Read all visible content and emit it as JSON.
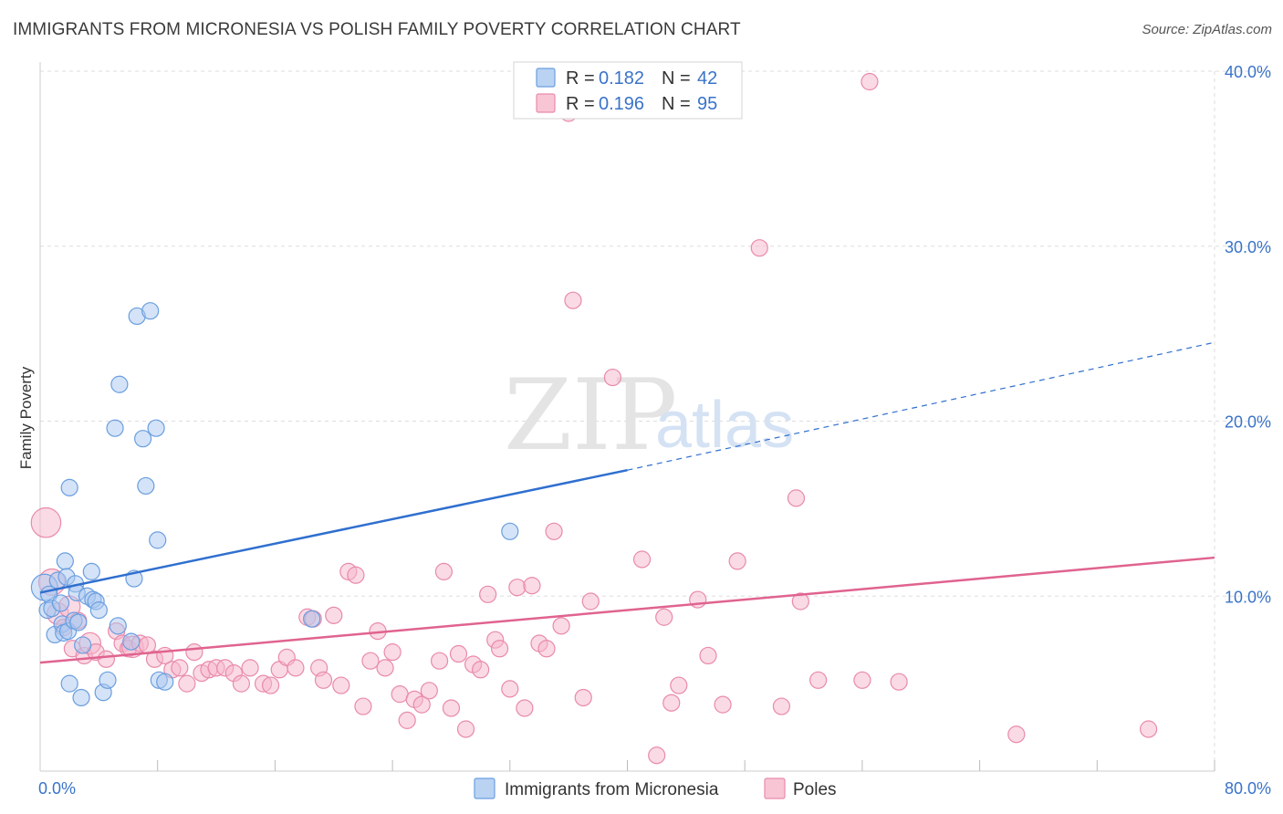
{
  "header": {
    "title": "IMMIGRANTS FROM MICRONESIA VS POLISH FAMILY POVERTY CORRELATION CHART",
    "source": "Source: ZipAtlas.com"
  },
  "watermark": {
    "zip": "ZIP",
    "atlas": "atlas"
  },
  "colors": {
    "blue_fill": "#a9c8f0",
    "blue_stroke": "#6a9ee0",
    "blue_line": "#2f6fcf",
    "pink_fill": "#f6b6cb",
    "pink_stroke": "#e98aaa",
    "pink_line": "#e0638f",
    "tick_text": "#3a73c9",
    "grid": "#dedede"
  },
  "legend": {
    "rows": [
      {
        "r_label": "R = ",
        "r_value": "0.182",
        "n_label": "N = ",
        "n_value": "42"
      },
      {
        "r_label": "R = ",
        "r_value": "0.196",
        "n_label": "N = ",
        "n_value": "95"
      }
    ]
  },
  "bottom_legend": [
    "Immigrants from Micronesia",
    "Poles"
  ],
  "chart_data": {
    "type": "scatter",
    "title": "IMMIGRANTS FROM MICRONESIA VS POLISH FAMILY POVERTY CORRELATION CHART",
    "xlabel": "",
    "ylabel": "Family Poverty",
    "xlim": [
      0,
      80
    ],
    "ylim": [
      0,
      40
    ],
    "x_tick_labels": [
      "0.0%",
      "80.0%"
    ],
    "y_ticks": [
      10,
      20,
      30,
      40
    ],
    "y_tick_labels": [
      "10.0%",
      "20.0%",
      "30.0%",
      "40.0%"
    ],
    "grid": true,
    "legend_position": "top-center",
    "series": [
      {
        "name": "Immigrants from Micronesia",
        "R": 0.182,
        "N": 42,
        "trend": {
          "x0": 0,
          "y0": 10.2,
          "x1": 40,
          "y1": 17.2,
          "dashed_to_x": 80,
          "dashed_to_y": 24.5
        },
        "points": [
          [
            0.3,
            10.5,
            1.6
          ],
          [
            0.5,
            9.2,
            1.0
          ],
          [
            0.6,
            10.1,
            1.0
          ],
          [
            0.8,
            9.3,
            1.0
          ],
          [
            1.0,
            7.8,
            1.0
          ],
          [
            1.2,
            10.9,
            1.0
          ],
          [
            1.4,
            9.6,
            1.0
          ],
          [
            1.5,
            8.4,
            1.0
          ],
          [
            1.6,
            7.9,
            1.0
          ],
          [
            1.7,
            12.0,
            1.0
          ],
          [
            1.8,
            11.1,
            1.0
          ],
          [
            1.9,
            8.0,
            1.0
          ],
          [
            2.0,
            5.0,
            1.0
          ],
          [
            2.0,
            16.2,
            1.0
          ],
          [
            2.3,
            8.6,
            1.0
          ],
          [
            2.4,
            10.7,
            1.0
          ],
          [
            2.5,
            10.2,
            1.0
          ],
          [
            2.6,
            8.5,
            1.0
          ],
          [
            2.8,
            4.2,
            1.0
          ],
          [
            2.9,
            7.2,
            1.0
          ],
          [
            3.2,
            10.0,
            1.0
          ],
          [
            3.5,
            11.4,
            1.0
          ],
          [
            3.6,
            9.8,
            1.0
          ],
          [
            3.8,
            9.7,
            1.0
          ],
          [
            4.0,
            9.2,
            1.0
          ],
          [
            4.3,
            4.5,
            1.0
          ],
          [
            4.6,
            5.2,
            1.0
          ],
          [
            5.1,
            19.6,
            1.0
          ],
          [
            5.3,
            8.3,
            1.0
          ],
          [
            5.4,
            22.1,
            1.0
          ],
          [
            6.2,
            7.4,
            1.0
          ],
          [
            6.4,
            11.0,
            1.0
          ],
          [
            6.6,
            26.0,
            1.0
          ],
          [
            7.0,
            19.0,
            1.0
          ],
          [
            7.2,
            16.3,
            1.0
          ],
          [
            7.5,
            26.3,
            1.0
          ],
          [
            7.9,
            19.6,
            1.0
          ],
          [
            8.0,
            13.2,
            1.0
          ],
          [
            8.1,
            5.2,
            1.0
          ],
          [
            8.5,
            5.1,
            1.0
          ],
          [
            18.5,
            8.7,
            1.0
          ],
          [
            32.0,
            13.7,
            1.0
          ]
        ]
      },
      {
        "name": "Poles",
        "R": 0.196,
        "N": 95,
        "trend": {
          "x0": 0,
          "y0": 6.2,
          "x1": 80,
          "y1": 12.2
        },
        "points": [
          [
            0.4,
            14.2,
            1.8
          ],
          [
            0.8,
            10.8,
            1.6
          ],
          [
            1.2,
            9.0,
            1.3
          ],
          [
            1.6,
            8.2,
            1.0
          ],
          [
            2.0,
            9.4,
            1.3
          ],
          [
            2.2,
            7.0,
            1.0
          ],
          [
            2.6,
            8.6,
            1.0
          ],
          [
            3.0,
            6.6,
            1.0
          ],
          [
            3.4,
            7.3,
            1.3
          ],
          [
            3.8,
            6.8,
            1.0
          ],
          [
            4.5,
            6.4,
            1.0
          ],
          [
            5.2,
            8.0,
            1.0
          ],
          [
            5.6,
            7.3,
            1.0
          ],
          [
            6.0,
            7.0,
            1.0
          ],
          [
            6.3,
            7.1,
            1.3
          ],
          [
            6.8,
            7.3,
            1.0
          ],
          [
            7.3,
            7.2,
            1.0
          ],
          [
            7.8,
            6.4,
            1.0
          ],
          [
            8.5,
            6.6,
            1.0
          ],
          [
            9.0,
            5.8,
            1.0
          ],
          [
            9.5,
            5.9,
            1.0
          ],
          [
            10.0,
            5.0,
            1.0
          ],
          [
            10.5,
            6.8,
            1.0
          ],
          [
            11.0,
            5.6,
            1.0
          ],
          [
            11.5,
            5.8,
            1.0
          ],
          [
            12.0,
            5.9,
            1.0
          ],
          [
            12.6,
            5.9,
            1.0
          ],
          [
            13.2,
            5.6,
            1.0
          ],
          [
            13.7,
            5.0,
            1.0
          ],
          [
            14.3,
            5.9,
            1.0
          ],
          [
            15.2,
            5.0,
            1.0
          ],
          [
            15.7,
            4.9,
            1.0
          ],
          [
            16.3,
            5.8,
            1.0
          ],
          [
            16.8,
            6.5,
            1.0
          ],
          [
            17.4,
            5.9,
            1.0
          ],
          [
            18.2,
            8.8,
            1.0
          ],
          [
            18.6,
            8.7,
            1.0
          ],
          [
            19.0,
            5.9,
            1.0
          ],
          [
            19.3,
            5.2,
            1.0
          ],
          [
            20.0,
            8.9,
            1.0
          ],
          [
            20.5,
            4.9,
            1.0
          ],
          [
            21.0,
            11.4,
            1.0
          ],
          [
            21.5,
            11.2,
            1.0
          ],
          [
            22.0,
            3.7,
            1.0
          ],
          [
            22.5,
            6.3,
            1.0
          ],
          [
            23.0,
            8.0,
            1.0
          ],
          [
            23.5,
            5.9,
            1.0
          ],
          [
            24.0,
            6.8,
            1.0
          ],
          [
            24.5,
            4.4,
            1.0
          ],
          [
            25.0,
            2.9,
            1.0
          ],
          [
            25.5,
            4.1,
            1.0
          ],
          [
            26.0,
            3.8,
            1.0
          ],
          [
            26.5,
            4.6,
            1.0
          ],
          [
            27.2,
            6.3,
            1.0
          ],
          [
            27.5,
            11.4,
            1.0
          ],
          [
            28.0,
            3.6,
            1.0
          ],
          [
            28.5,
            6.7,
            1.0
          ],
          [
            29.0,
            2.4,
            1.0
          ],
          [
            29.5,
            6.1,
            1.0
          ],
          [
            30.0,
            5.8,
            1.0
          ],
          [
            30.5,
            10.1,
            1.0
          ],
          [
            31.0,
            7.5,
            1.0
          ],
          [
            31.3,
            7.0,
            1.0
          ],
          [
            32.0,
            4.7,
            1.0
          ],
          [
            32.5,
            10.5,
            1.0
          ],
          [
            33.0,
            3.6,
            1.0
          ],
          [
            33.5,
            10.6,
            1.0
          ],
          [
            34.0,
            7.3,
            1.0
          ],
          [
            34.5,
            7.0,
            1.0
          ],
          [
            35.0,
            13.7,
            1.0
          ],
          [
            35.5,
            8.3,
            1.0
          ],
          [
            36.0,
            37.6,
            1.0
          ],
          [
            36.3,
            26.9,
            1.0
          ],
          [
            37.0,
            4.2,
            1.0
          ],
          [
            37.5,
            9.7,
            1.0
          ],
          [
            39.0,
            22.5,
            1.0
          ],
          [
            41.0,
            12.1,
            1.0
          ],
          [
            42.0,
            0.9,
            1.0
          ],
          [
            42.5,
            8.8,
            1.0
          ],
          [
            43.0,
            3.9,
            1.0
          ],
          [
            43.5,
            4.9,
            1.0
          ],
          [
            44.8,
            9.8,
            1.0
          ],
          [
            45.5,
            6.6,
            1.0
          ],
          [
            46.5,
            3.8,
            1.0
          ],
          [
            47.5,
            12.0,
            1.0
          ],
          [
            49.0,
            29.9,
            1.0
          ],
          [
            50.5,
            3.7,
            1.0
          ],
          [
            51.5,
            15.6,
            1.0
          ],
          [
            51.8,
            9.7,
            1.0
          ],
          [
            53.0,
            5.2,
            1.0
          ],
          [
            56.0,
            5.2,
            1.0
          ],
          [
            56.5,
            39.4,
            1.0
          ],
          [
            58.5,
            5.1,
            1.0
          ],
          [
            66.5,
            2.1,
            1.0
          ],
          [
            75.5,
            2.4,
            1.0
          ]
        ]
      }
    ]
  }
}
